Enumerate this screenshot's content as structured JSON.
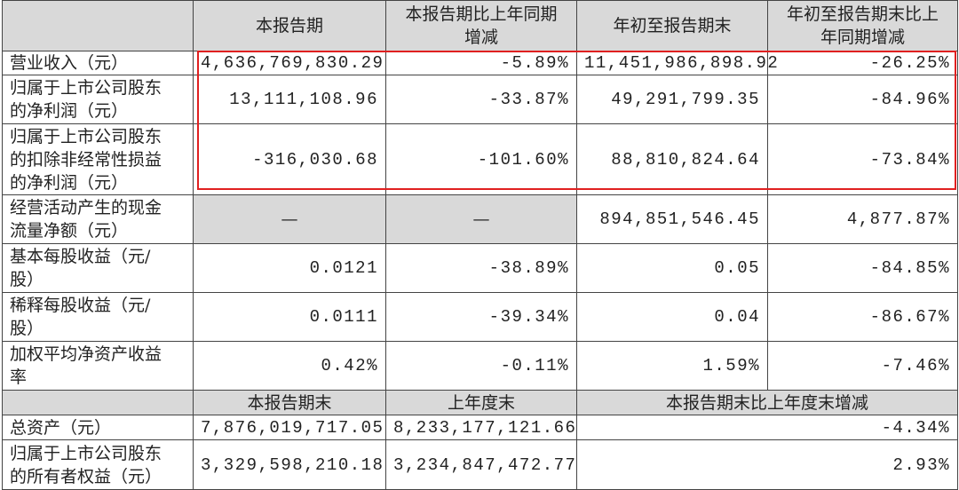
{
  "header": {
    "columns": [
      [
        "本报告期"
      ],
      [
        "本报告期比上年同期",
        "增减"
      ],
      [
        "年初至报告期末"
      ],
      [
        "年初至报告期末比上",
        "年同期增减"
      ]
    ]
  },
  "rows": [
    {
      "label": [
        "营业收入（元）"
      ],
      "cells": [
        "4,636,769,830.29",
        "-5.89%",
        "11,451,986,898.92",
        "-26.25%"
      ]
    },
    {
      "label": [
        "归属于上市公司股东",
        "的净利润（元）"
      ],
      "cells": [
        "13,111,108.96",
        "-33.87%",
        "49,291,799.35",
        "-84.96%"
      ]
    },
    {
      "label": [
        "归属于上市公司股东",
        "的扣除非经常性损益",
        "的净利润（元）"
      ],
      "cells": [
        "-316,030.68",
        "-101.60%",
        "88,810,824.64",
        "-73.84%"
      ]
    },
    {
      "label": [
        "经营活动产生的现金",
        "流量净额（元）"
      ],
      "cells": [
        "—",
        "—",
        "894,851,546.45",
        "4,877.87%"
      ]
    },
    {
      "label": [
        "基本每股收益（元/",
        "股）"
      ],
      "cells": [
        "0.0121",
        "-38.89%",
        "0.05",
        "-84.85%"
      ]
    },
    {
      "label": [
        "稀释每股收益（元/",
        "股）"
      ],
      "cells": [
        "0.0111",
        "-39.34%",
        "0.04",
        "-86.67%"
      ]
    },
    {
      "label": [
        "加权平均净资产收益",
        "率"
      ],
      "cells": [
        "0.42%",
        "-0.11%",
        "1.59%",
        "-7.46%"
      ]
    }
  ],
  "subheader": {
    "columns": [
      "本报告期末",
      "上年度末",
      "本报告期末比上年度末增减"
    ]
  },
  "rows2": [
    {
      "label": [
        "总资产（元）"
      ],
      "cells": [
        "7,876,019,717.05",
        "8,233,177,121.66",
        "-4.34%"
      ]
    },
    {
      "label": [
        "归属于上市公司股东",
        "的所有者权益（元）"
      ],
      "cells": [
        "3,329,598,210.18",
        "3,234,847,472.77",
        "2.93%"
      ]
    }
  ]
}
